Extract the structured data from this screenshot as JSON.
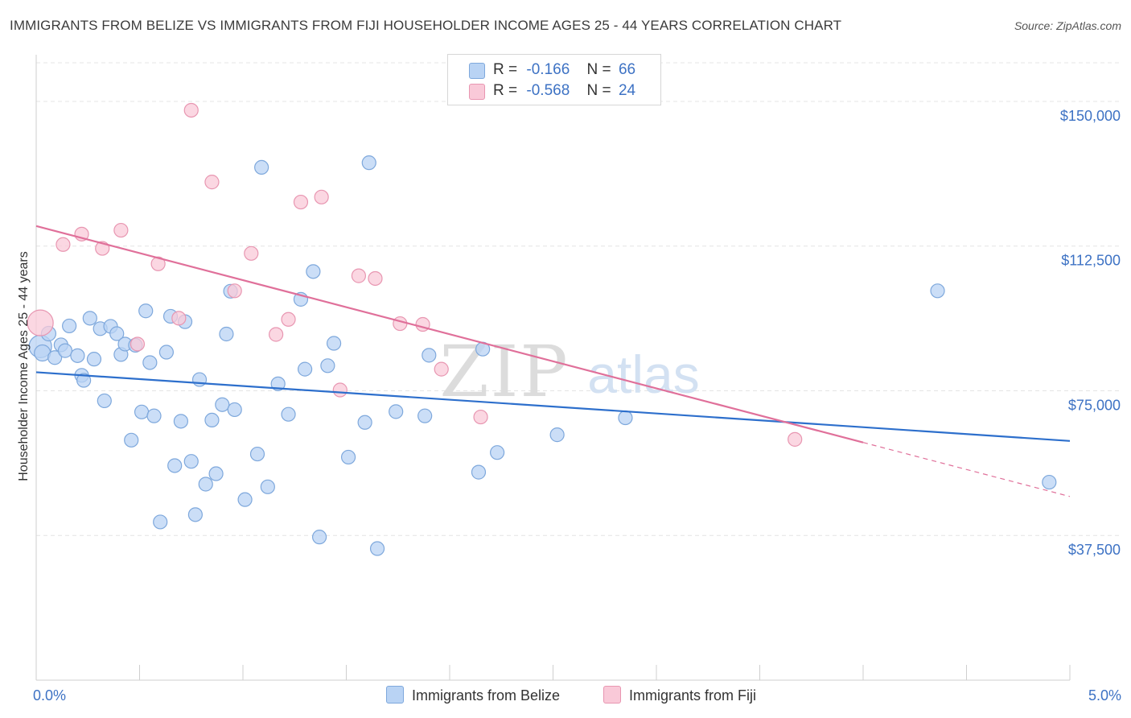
{
  "title": "IMMIGRANTS FROM BELIZE VS IMMIGRANTS FROM FIJI HOUSEHOLDER INCOME AGES 25 - 44 YEARS CORRELATION CHART",
  "source": "Source: ZipAtlas.com",
  "watermark": {
    "zip": "ZIP",
    "atlas": "atlas"
  },
  "legend_top": {
    "belize": {
      "r_label": "R =",
      "r_value": "-0.166",
      "n_label": "N =",
      "n_value": "66"
    },
    "fiji": {
      "r_label": "R =",
      "r_value": "-0.568",
      "n_label": "N =",
      "n_value": "24"
    }
  },
  "colors": {
    "belize_fill": "#b9d3f4",
    "belize_stroke": "#7ea8dc",
    "belize_line": "#2d6fcc",
    "fiji_fill": "#f9c9d8",
    "fiji_stroke": "#e896b1",
    "fiji_line": "#e0709a",
    "tick_label": "#3d72c4",
    "grid": "#e4e4e4"
  },
  "chart_data": {
    "type": "scatter",
    "title": "IMMIGRANTS FROM BELIZE VS IMMIGRANTS FROM FIJI HOUSEHOLDER INCOME AGES 25 - 44 YEARS CORRELATION CHART",
    "xlabel": "",
    "ylabel": "Householder Income Ages 25 - 44 years",
    "xlim": [
      0,
      5
    ],
    "ylim": [
      0,
      160000
    ],
    "x_ticks": [
      0,
      0.5,
      1,
      1.5,
      2,
      2.5,
      3,
      3.5,
      4,
      4.5,
      5
    ],
    "x_tick_labels": {
      "0": "0.0%",
      "5": "5.0%"
    },
    "y_ticks": [
      37500,
      75000,
      112500,
      150000
    ],
    "y_tick_labels": [
      "$37,500",
      "$75,000",
      "$112,500",
      "$150,000"
    ],
    "grid": true,
    "legend_position": "top-center",
    "series": [
      {
        "name": "Immigrants from Belize",
        "r": -0.166,
        "n": 66,
        "trend": {
          "x": [
            0,
            5
          ],
          "y": [
            79800,
            62000
          ]
        },
        "points": [
          {
            "x": 0.02,
            "y": 86500,
            "size": 14
          },
          {
            "x": 0.03,
            "y": 84800,
            "size": 10
          },
          {
            "x": 0.06,
            "y": 89800,
            "size": 9
          },
          {
            "x": 0.09,
            "y": 83600
          },
          {
            "x": 0.12,
            "y": 86900
          },
          {
            "x": 0.14,
            "y": 85400
          },
          {
            "x": 0.16,
            "y": 91800
          },
          {
            "x": 0.2,
            "y": 84100
          },
          {
            "x": 0.22,
            "y": 79000
          },
          {
            "x": 0.23,
            "y": 77700
          },
          {
            "x": 0.26,
            "y": 93800
          },
          {
            "x": 0.28,
            "y": 83200
          },
          {
            "x": 0.31,
            "y": 91100
          },
          {
            "x": 0.33,
            "y": 72400
          },
          {
            "x": 0.36,
            "y": 91700
          },
          {
            "x": 0.39,
            "y": 89800
          },
          {
            "x": 0.41,
            "y": 84400
          },
          {
            "x": 0.43,
            "y": 87100
          },
          {
            "x": 0.46,
            "y": 62200
          },
          {
            "x": 0.48,
            "y": 86800
          },
          {
            "x": 0.51,
            "y": 69500
          },
          {
            "x": 0.53,
            "y": 95700
          },
          {
            "x": 0.55,
            "y": 82300
          },
          {
            "x": 0.57,
            "y": 68500
          },
          {
            "x": 0.6,
            "y": 41000
          },
          {
            "x": 0.63,
            "y": 85000
          },
          {
            "x": 0.65,
            "y": 94300
          },
          {
            "x": 0.67,
            "y": 55600
          },
          {
            "x": 0.7,
            "y": 67100
          },
          {
            "x": 0.72,
            "y": 92900
          },
          {
            "x": 0.75,
            "y": 56700
          },
          {
            "x": 0.77,
            "y": 42900
          },
          {
            "x": 0.79,
            "y": 77900
          },
          {
            "x": 0.82,
            "y": 50800
          },
          {
            "x": 0.85,
            "y": 67400
          },
          {
            "x": 0.87,
            "y": 53500
          },
          {
            "x": 0.9,
            "y": 71400
          },
          {
            "x": 0.92,
            "y": 89700
          },
          {
            "x": 0.94,
            "y": 100800
          },
          {
            "x": 0.96,
            "y": 70100
          },
          {
            "x": 1.01,
            "y": 46800
          },
          {
            "x": 1.07,
            "y": 58600
          },
          {
            "x": 1.09,
            "y": 132900
          },
          {
            "x": 1.12,
            "y": 50100
          },
          {
            "x": 1.17,
            "y": 76800
          },
          {
            "x": 1.22,
            "y": 68900
          },
          {
            "x": 1.28,
            "y": 98700
          },
          {
            "x": 1.3,
            "y": 80600
          },
          {
            "x": 1.34,
            "y": 105900
          },
          {
            "x": 1.37,
            "y": 37100
          },
          {
            "x": 1.41,
            "y": 81500
          },
          {
            "x": 1.44,
            "y": 87300
          },
          {
            "x": 1.51,
            "y": 57800
          },
          {
            "x": 1.59,
            "y": 66800
          },
          {
            "x": 1.61,
            "y": 134100
          },
          {
            "x": 1.65,
            "y": 34100
          },
          {
            "x": 1.74,
            "y": 69600
          },
          {
            "x": 1.88,
            "y": 68500
          },
          {
            "x": 1.9,
            "y": 84200
          },
          {
            "x": 2.14,
            "y": 53900
          },
          {
            "x": 2.16,
            "y": 85800
          },
          {
            "x": 2.23,
            "y": 59000
          },
          {
            "x": 2.52,
            "y": 63600
          },
          {
            "x": 2.85,
            "y": 68000
          },
          {
            "x": 4.36,
            "y": 100900
          },
          {
            "x": 4.9,
            "y": 51300
          }
        ]
      },
      {
        "name": "Immigrants from Fiji",
        "r": -0.568,
        "n": 24,
        "trend": {
          "x": [
            0,
            4
          ],
          "y": [
            117700,
            61600
          ]
        },
        "trend_dashed": {
          "x": [
            4,
            5
          ],
          "y": [
            61600,
            47600
          ]
        },
        "points": [
          {
            "x": 0.02,
            "y": 92600,
            "size": 16
          },
          {
            "x": 0.13,
            "y": 112900
          },
          {
            "x": 0.22,
            "y": 115600
          },
          {
            "x": 0.32,
            "y": 111900
          },
          {
            "x": 0.41,
            "y": 116600
          },
          {
            "x": 0.49,
            "y": 87100
          },
          {
            "x": 0.59,
            "y": 107900
          },
          {
            "x": 0.69,
            "y": 93800
          },
          {
            "x": 0.75,
            "y": 147700
          },
          {
            "x": 0.85,
            "y": 129100
          },
          {
            "x": 0.96,
            "y": 100900
          },
          {
            "x": 1.04,
            "y": 110600
          },
          {
            "x": 1.16,
            "y": 89600
          },
          {
            "x": 1.22,
            "y": 93500
          },
          {
            "x": 1.28,
            "y": 123900
          },
          {
            "x": 1.38,
            "y": 125200
          },
          {
            "x": 1.47,
            "y": 75200
          },
          {
            "x": 1.56,
            "y": 104800
          },
          {
            "x": 1.64,
            "y": 104100
          },
          {
            "x": 1.76,
            "y": 92400
          },
          {
            "x": 1.87,
            "y": 92200
          },
          {
            "x": 1.96,
            "y": 80600
          },
          {
            "x": 2.15,
            "y": 68200
          },
          {
            "x": 3.67,
            "y": 62400
          }
        ]
      }
    ]
  }
}
